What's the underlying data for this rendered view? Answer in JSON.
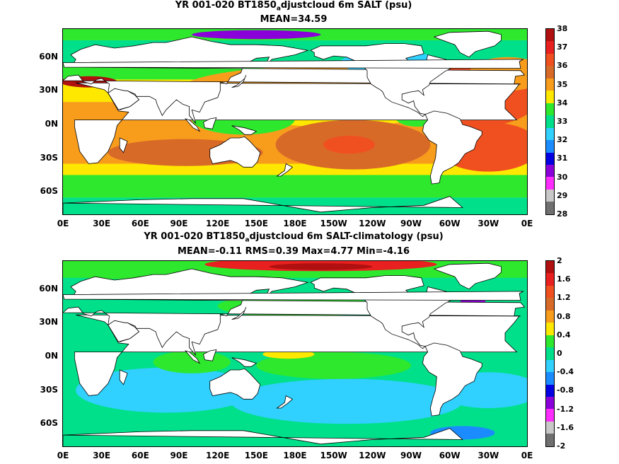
{
  "panels": [
    {
      "title_pre": "YR 001-020 BT1850",
      "title_sub": "a",
      "title_post": "djustcloud 6m SALT (psu)",
      "stats": "MEAN=34.59",
      "colorbar": {
        "labels": [
          "38",
          "37",
          "36",
          "35",
          "34",
          "33",
          "32",
          "31",
          "30",
          "29",
          "28"
        ],
        "colors": [
          "#b01010",
          "#e82020",
          "#f05020",
          "#d86a28",
          "#f89c1c",
          "#ffe800",
          "#2ee82e",
          "#00e08a",
          "#30d0ff",
          "#1a8cff",
          "#0000e0",
          "#8a00d8",
          "#ff2cff",
          "#c8c8c8",
          "#707070"
        ]
      },
      "chart_data": {
        "type": "heatmap",
        "variable": "SALT",
        "units": "psu",
        "mean": 34.59,
        "xticks": [
          "0E",
          "30E",
          "60E",
          "90E",
          "120E",
          "150E",
          "180E",
          "150W",
          "120W",
          "90W",
          "60W",
          "30W",
          "0E"
        ],
        "yticks": [
          "60N",
          "30N",
          "0N",
          "30S",
          "60S"
        ],
        "ylim": [
          -80,
          85
        ],
        "color_range": [
          28,
          38
        ]
      }
    },
    {
      "title_pre": "YR 001-020 BT1850",
      "title_sub": "a",
      "title_post": "djustcloud 6m SALT-climatology (psu)",
      "stats": "MEAN=-0.11   RMS=0.39   Max=4.77   Min=-4.16",
      "colorbar": {
        "labels": [
          "2",
          "1.6",
          "1.2",
          "0.8",
          "0.4",
          "0",
          "-0.4",
          "-0.8",
          "-1.2",
          "-1.6",
          "-2"
        ],
        "colors": [
          "#b01010",
          "#e82020",
          "#f05020",
          "#d86a28",
          "#f89c1c",
          "#ffe800",
          "#2ee82e",
          "#00e08a",
          "#30d0ff",
          "#1a8cff",
          "#0000e0",
          "#8a00d8",
          "#ff2cff",
          "#c8c8c8",
          "#707070"
        ]
      },
      "chart_data": {
        "type": "heatmap",
        "variable": "SALT-climatology",
        "units": "psu",
        "mean": -0.11,
        "rms": 0.39,
        "max": 4.77,
        "min": -4.16,
        "xticks": [
          "0E",
          "30E",
          "60E",
          "90E",
          "120E",
          "150E",
          "180E",
          "150W",
          "120W",
          "90W",
          "60W",
          "30W",
          "0E"
        ],
        "yticks": [
          "60N",
          "30N",
          "0N",
          "30S",
          "60S"
        ],
        "ylim": [
          -80,
          85
        ],
        "color_range": [
          -2,
          2
        ]
      }
    }
  ]
}
